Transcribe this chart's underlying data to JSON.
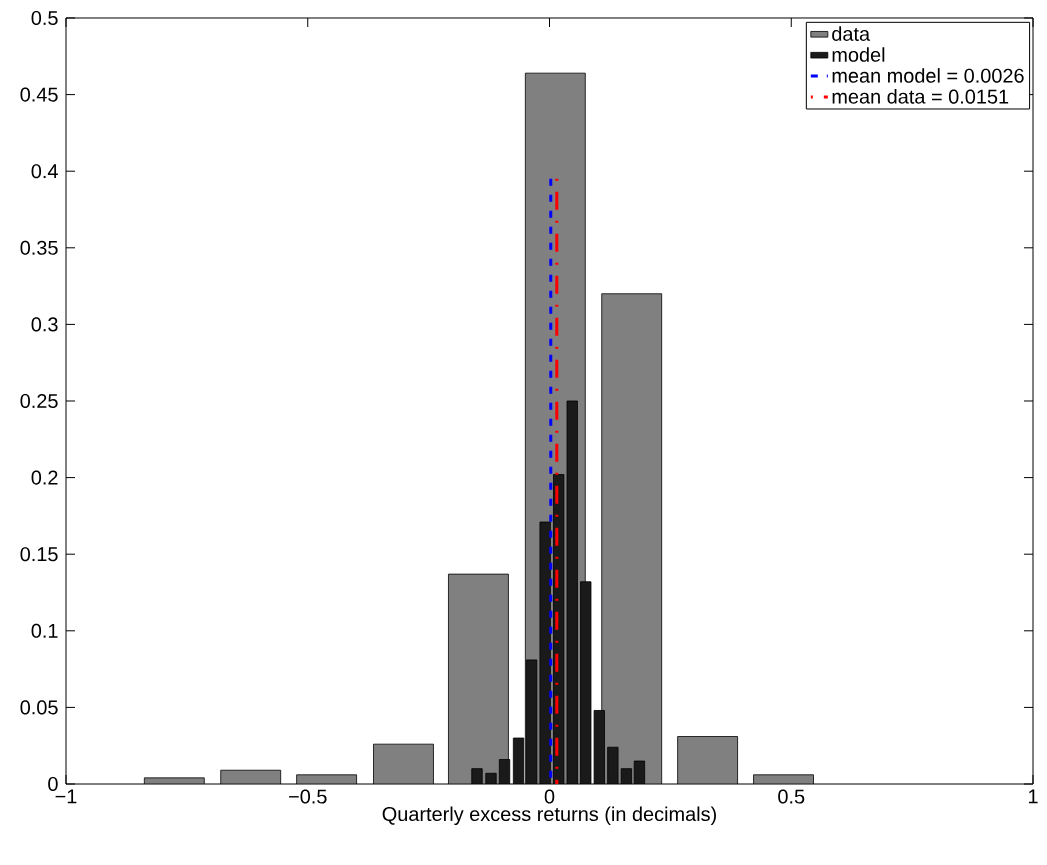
{
  "chart_data": {
    "type": "bar",
    "xlabel": "Quarterly excess returns (in decimals)",
    "xlim": [
      -1,
      1
    ],
    "xticks": [
      {
        "value": -1,
        "label": "−1"
      },
      {
        "value": -0.5,
        "label": "−0.5"
      },
      0,
      0.5,
      1
    ],
    "ylim": [
      0,
      0.5
    ],
    "yticks": [
      0,
      0.05,
      0.1,
      0.15,
      0.2,
      0.25,
      0.3,
      0.35,
      0.4,
      0.45,
      0.5
    ],
    "legend": "top right",
    "series": [
      {
        "name": "data",
        "color": "#808080",
        "x": [
          -0.776,
          -0.618,
          -0.461,
          -0.302,
          -0.147,
          0.012,
          0.17,
          0.327,
          0.484
        ],
        "values": [
          0.004,
          0.009,
          0.006,
          0.026,
          0.137,
          0.464,
          0.32,
          0.031,
          0.006
        ]
      },
      {
        "name": "model",
        "color": "#1a1a1a",
        "x": [
          -0.15,
          -0.121,
          -0.093,
          -0.064,
          -0.037,
          -0.009,
          0.019,
          0.047,
          0.075,
          0.103,
          0.131,
          0.159,
          0.186
        ],
        "values": [
          0.01,
          0.007,
          0.016,
          0.03,
          0.081,
          0.171,
          0.202,
          0.25,
          0.132,
          0.048,
          0.024,
          0.01,
          0.015
        ]
      },
      {
        "name": "mean model = 0.0026",
        "type": "line",
        "color": "#0000ff",
        "line_style": "dotted",
        "x": [
          0.0026,
          0.0026
        ],
        "values": [
          0,
          0.395
        ]
      },
      {
        "name": "mean data   =  0.0151",
        "type": "line",
        "color": "#ff0000",
        "line_style": "dashed",
        "x": [
          0.0151,
          0.0151
        ],
        "values": [
          0,
          0.395
        ]
      }
    ]
  }
}
